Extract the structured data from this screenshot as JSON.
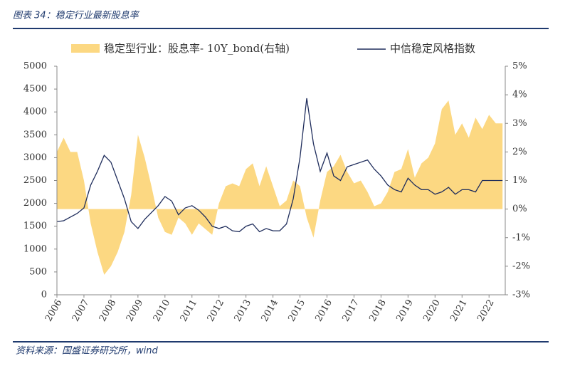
{
  "header": {
    "title": "图表 34：稳定行业最新股息率"
  },
  "footer": {
    "source": "资料来源：国盛证券研究所，wind"
  },
  "chart_data": {
    "type": "area-line",
    "x": [
      2006.0,
      2006.25,
      2006.5,
      2006.75,
      2007.0,
      2007.25,
      2007.5,
      2007.75,
      2008.0,
      2008.25,
      2008.5,
      2008.75,
      2009.0,
      2009.25,
      2009.5,
      2009.75,
      2010.0,
      2010.25,
      2010.5,
      2010.75,
      2011.0,
      2011.25,
      2011.5,
      2011.75,
      2012.0,
      2012.25,
      2012.5,
      2012.75,
      2013.0,
      2013.25,
      2013.5,
      2013.75,
      2014.0,
      2014.25,
      2014.5,
      2014.75,
      2015.0,
      2015.25,
      2015.5,
      2015.75,
      2016.0,
      2016.25,
      2016.5,
      2016.75,
      2017.0,
      2017.25,
      2017.5,
      2017.75,
      2018.0,
      2018.25,
      2018.5,
      2018.75,
      2019.0,
      2019.25,
      2019.5,
      2019.75,
      2020.0,
      2020.25,
      2020.5,
      2020.75,
      2021.0,
      2021.25,
      2021.5,
      2021.75,
      2022.0,
      2022.25,
      2022.5
    ],
    "series": [
      {
        "name": "稳定型行业：股息率- 10Y_bond(右轴)",
        "type": "area",
        "axis": "y2",
        "color": "#fcd882",
        "values": [
          2.0,
          2.5,
          2.0,
          2.0,
          1.0,
          -0.5,
          -1.5,
          -2.3,
          -2.0,
          -1.5,
          -0.8,
          0.5,
          2.6,
          1.8,
          0.8,
          -0.3,
          -0.8,
          -0.9,
          -0.3,
          -0.5,
          -0.9,
          -0.5,
          -0.7,
          -0.9,
          0.2,
          0.8,
          0.9,
          0.8,
          1.4,
          1.6,
          0.8,
          1.5,
          0.8,
          0.1,
          0.3,
          1.0,
          0.8,
          -0.3,
          -1.0,
          0.3,
          1.3,
          1.5,
          1.9,
          1.3,
          0.9,
          1.0,
          0.6,
          0.1,
          0.2,
          0.6,
          1.3,
          1.4,
          2.1,
          1.1,
          1.6,
          1.8,
          2.3,
          3.5,
          3.8,
          2.6,
          3.0,
          2.5,
          3.2,
          2.8,
          3.3,
          3.0,
          3.0
        ]
      },
      {
        "name": "中信稳定风格指数",
        "type": "line",
        "color": "#1f2d5c",
        "values": [
          1600,
          1620,
          1700,
          1780,
          1900,
          2400,
          2700,
          3050,
          2900,
          2500,
          2100,
          1600,
          1450,
          1650,
          1800,
          1950,
          2150,
          2050,
          1750,
          1900,
          1950,
          1850,
          1700,
          1500,
          1450,
          1500,
          1400,
          1380,
          1500,
          1550,
          1380,
          1450,
          1400,
          1400,
          1550,
          2100,
          3000,
          4300,
          3300,
          2700,
          3100,
          2600,
          2500,
          2800,
          2850,
          2900,
          2950,
          2750,
          2600,
          2400,
          2300,
          2250,
          2550,
          2400,
          2300,
          2300,
          2200,
          2250,
          2350,
          2200,
          2300,
          2300,
          2250,
          2500,
          2500,
          2500,
          2500
        ]
      }
    ],
    "xlim": [
      2006,
      2022.6
    ],
    "xticks": [
      2006,
      2007,
      2008,
      2009,
      2010,
      2011,
      2012,
      2013,
      2014,
      2015,
      2016,
      2017,
      2018,
      2019,
      2020,
      2021,
      2022
    ],
    "ylim": [
      0,
      5000
    ],
    "yticks": [
      0,
      500,
      1000,
      1500,
      2000,
      2500,
      3000,
      3500,
      4000,
      4500,
      5000
    ],
    "y2lim": [
      -3,
      5
    ],
    "y2ticks": [
      {
        "value": -3,
        "label": "-3%"
      },
      {
        "value": -2,
        "label": "-2%"
      },
      {
        "value": -1,
        "label": "-1%"
      },
      {
        "value": 0,
        "label": "0%"
      },
      {
        "value": 1,
        "label": "1%"
      },
      {
        "value": 2,
        "label": "2%"
      },
      {
        "value": 3,
        "label": "3%"
      },
      {
        "value": 4,
        "label": "4%"
      },
      {
        "value": 5,
        "label": "5%"
      }
    ]
  }
}
